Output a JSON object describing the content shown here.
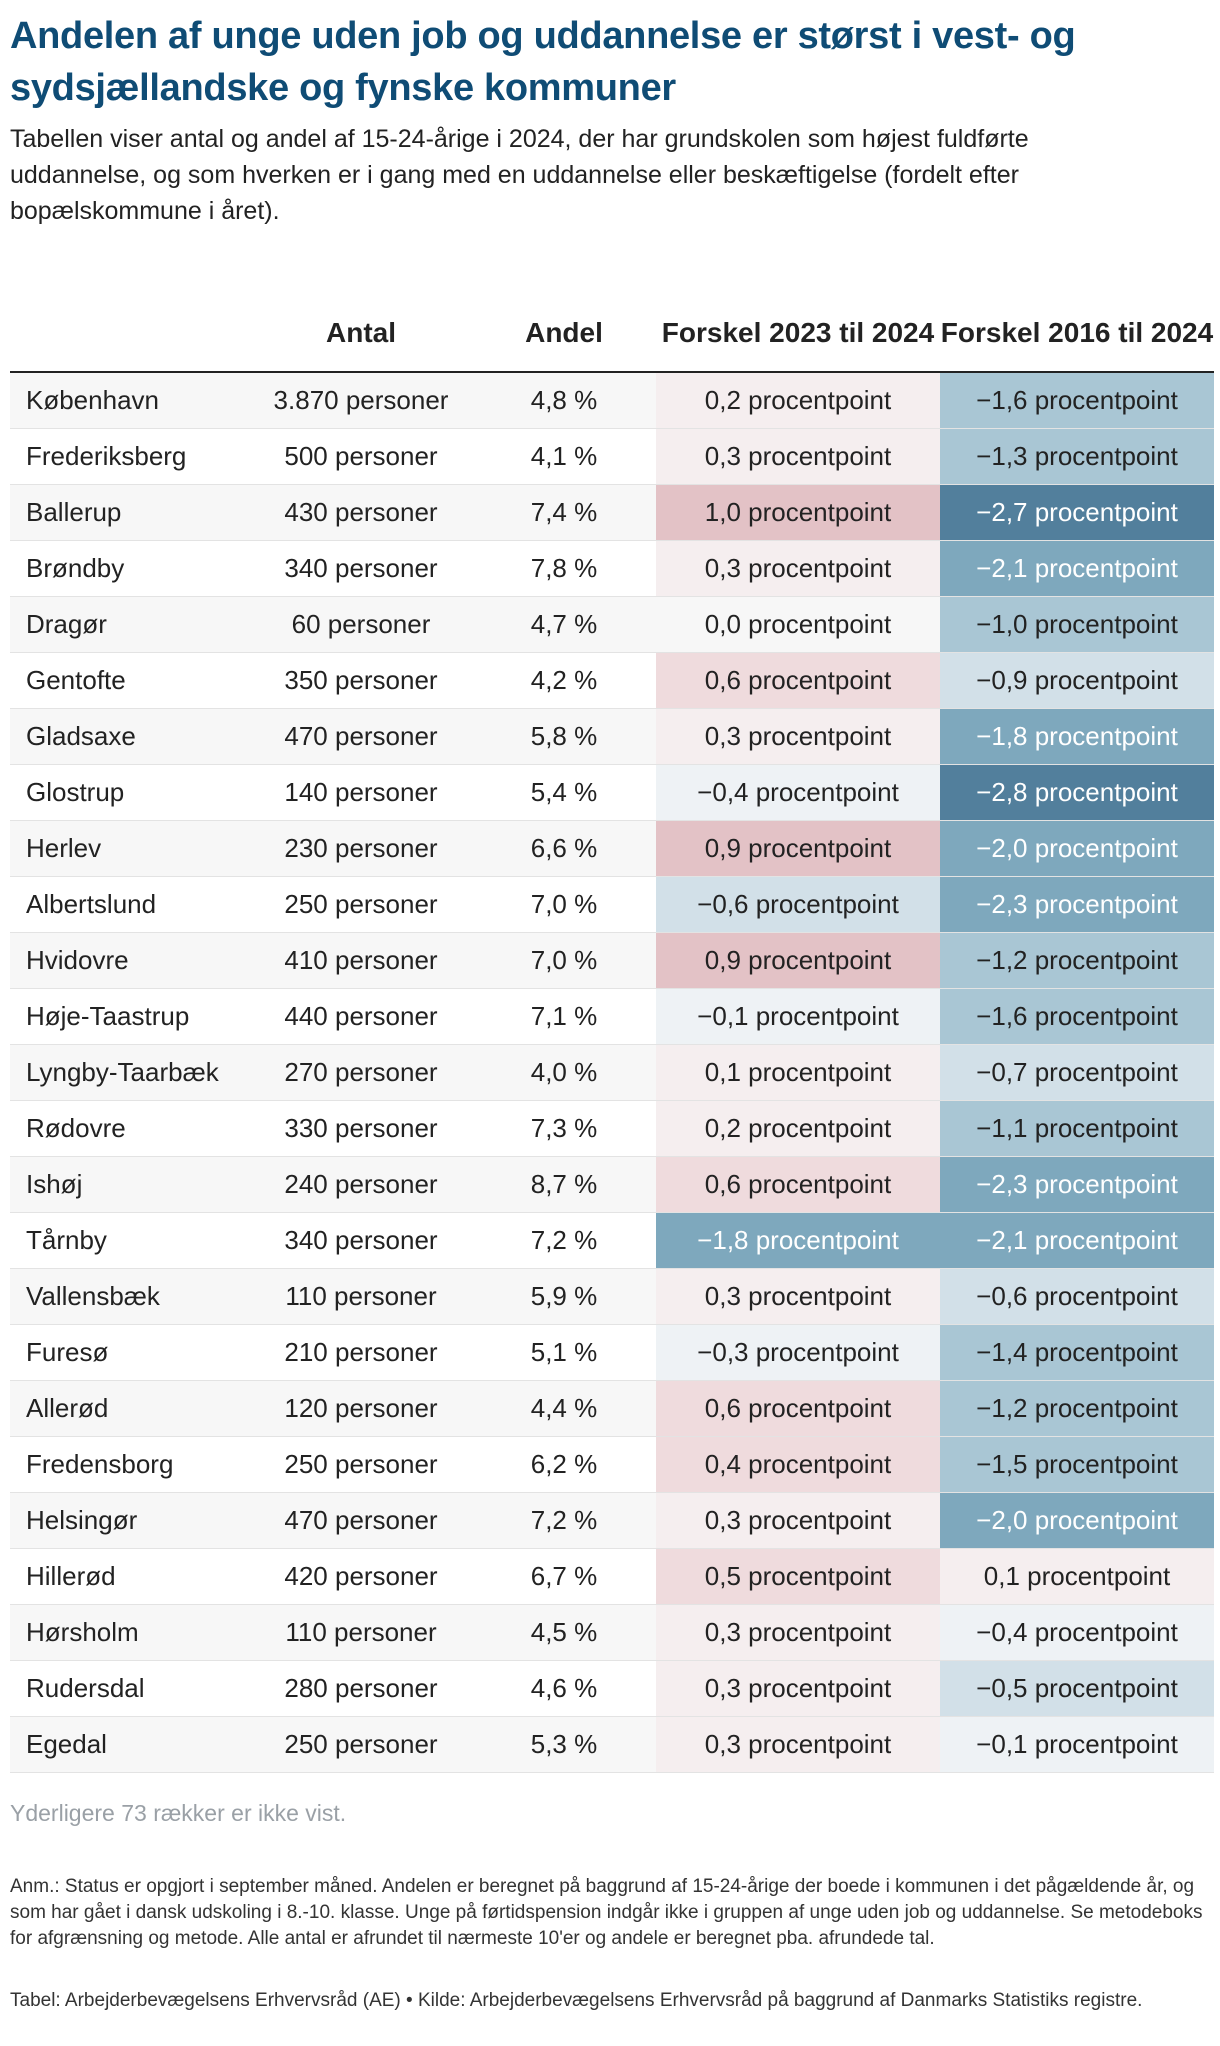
{
  "title": "Andelen af unge uden job og uddannelse er størst i vest- og sydsjællandske og fynske kommuner",
  "subtitle": "Tabellen viser antal og andel af 15-24-årige i 2024, der har grundskolen som højest fuldførte uddannelse, og som hverken er i gang med en uddannelse eller beskæftigelse (fordelt efter bopælskommune i året).",
  "colors": {
    "title": "#0f4c75",
    "positive_scale": [
      "#f5eeef",
      "#efdbdd",
      "#e3c2c6"
    ],
    "negative_scale": [
      "#eef2f5",
      "#d2e0e8",
      "#a9c6d4",
      "#7ea8bd",
      "#527f9c"
    ]
  },
  "chart_data": {
    "type": "table",
    "columns": [
      "",
      "Antal",
      "Andel",
      "Forskel 2023 til 2024",
      "Forskel 2016 til 2024"
    ],
    "unit_antal": "personer",
    "unit_diff": "procentpoint",
    "rows": [
      {
        "kommune": "København",
        "antal": "3.870 personer",
        "andel": "4,8 %",
        "d2023": 0.2,
        "d2016": -1.6
      },
      {
        "kommune": "Frederiksberg",
        "antal": "500 personer",
        "andel": "4,1 %",
        "d2023": 0.3,
        "d2016": -1.3
      },
      {
        "kommune": "Ballerup",
        "antal": "430 personer",
        "andel": "7,4 %",
        "d2023": 1.0,
        "d2016": -2.7
      },
      {
        "kommune": "Brøndby",
        "antal": "340 personer",
        "andel": "7,8 %",
        "d2023": 0.3,
        "d2016": -2.1
      },
      {
        "kommune": "Dragør",
        "antal": "60 personer",
        "andel": "4,7 %",
        "d2023": 0.0,
        "d2016": -1.0
      },
      {
        "kommune": "Gentofte",
        "antal": "350 personer",
        "andel": "4,2 %",
        "d2023": 0.6,
        "d2016": -0.9
      },
      {
        "kommune": "Gladsaxe",
        "antal": "470 personer",
        "andel": "5,8 %",
        "d2023": 0.3,
        "d2016": -1.8
      },
      {
        "kommune": "Glostrup",
        "antal": "140 personer",
        "andel": "5,4 %",
        "d2023": -0.4,
        "d2016": -2.8
      },
      {
        "kommune": "Herlev",
        "antal": "230 personer",
        "andel": "6,6 %",
        "d2023": 0.9,
        "d2016": -2.0
      },
      {
        "kommune": "Albertslund",
        "antal": "250 personer",
        "andel": "7,0 %",
        "d2023": -0.6,
        "d2016": -2.3
      },
      {
        "kommune": "Hvidovre",
        "antal": "410 personer",
        "andel": "7,0 %",
        "d2023": 0.9,
        "d2016": -1.2
      },
      {
        "kommune": "Høje-Taastrup",
        "antal": "440 personer",
        "andel": "7,1 %",
        "d2023": -0.1,
        "d2016": -1.6
      },
      {
        "kommune": "Lyngby-Taarbæk",
        "antal": "270 personer",
        "andel": "4,0 %",
        "d2023": 0.1,
        "d2016": -0.7
      },
      {
        "kommune": "Rødovre",
        "antal": "330 personer",
        "andel": "7,3 %",
        "d2023": 0.2,
        "d2016": -1.1
      },
      {
        "kommune": "Ishøj",
        "antal": "240 personer",
        "andel": "8,7 %",
        "d2023": 0.6,
        "d2016": -2.3
      },
      {
        "kommune": "Tårnby",
        "antal": "340 personer",
        "andel": "7,2 %",
        "d2023": -1.8,
        "d2016": -2.1
      },
      {
        "kommune": "Vallensbæk",
        "antal": "110 personer",
        "andel": "5,9 %",
        "d2023": 0.3,
        "d2016": -0.6
      },
      {
        "kommune": "Furesø",
        "antal": "210 personer",
        "andel": "5,1 %",
        "d2023": -0.3,
        "d2016": -1.4
      },
      {
        "kommune": "Allerød",
        "antal": "120 personer",
        "andel": "4,4 %",
        "d2023": 0.6,
        "d2016": -1.2
      },
      {
        "kommune": "Fredensborg",
        "antal": "250 personer",
        "andel": "6,2 %",
        "d2023": 0.4,
        "d2016": -1.5
      },
      {
        "kommune": "Helsingør",
        "antal": "470 personer",
        "andel": "7,2 %",
        "d2023": 0.3,
        "d2016": -2.0
      },
      {
        "kommune": "Hillerød",
        "antal": "420 personer",
        "andel": "6,7 %",
        "d2023": 0.5,
        "d2016": 0.1
      },
      {
        "kommune": "Hørsholm",
        "antal": "110 personer",
        "andel": "4,5 %",
        "d2023": 0.3,
        "d2016": -0.4
      },
      {
        "kommune": "Rudersdal",
        "antal": "280 personer",
        "andel": "4,6 %",
        "d2023": 0.3,
        "d2016": -0.5
      },
      {
        "kommune": "Egedal",
        "antal": "250 personer",
        "andel": "5,3 %",
        "d2023": 0.3,
        "d2016": -0.1
      }
    ]
  },
  "more_rows_text": "Yderligere 73 rækker er ikke vist.",
  "note": "Anm.: Status er opgjort i september måned. Andelen er beregnet på baggrund af 15-24-årige der boede i kommunen i det pågældende år, og som har gået i dansk udskoling i 8.-10. klasse. Unge på førtidspension indgår ikke i gruppen af unge uden job og uddannelse. Se metodeboks for afgrænsning og metode. Alle antal er afrundet til nærmeste 10'er og andele er beregnet pba. afrundede tal.",
  "source": "Tabel: Arbejderbevægelsens Erhvervsråd (AE) • Kilde: Arbejderbevægelsens Erhvervsråd på baggrund af Danmarks Statistiks registre."
}
